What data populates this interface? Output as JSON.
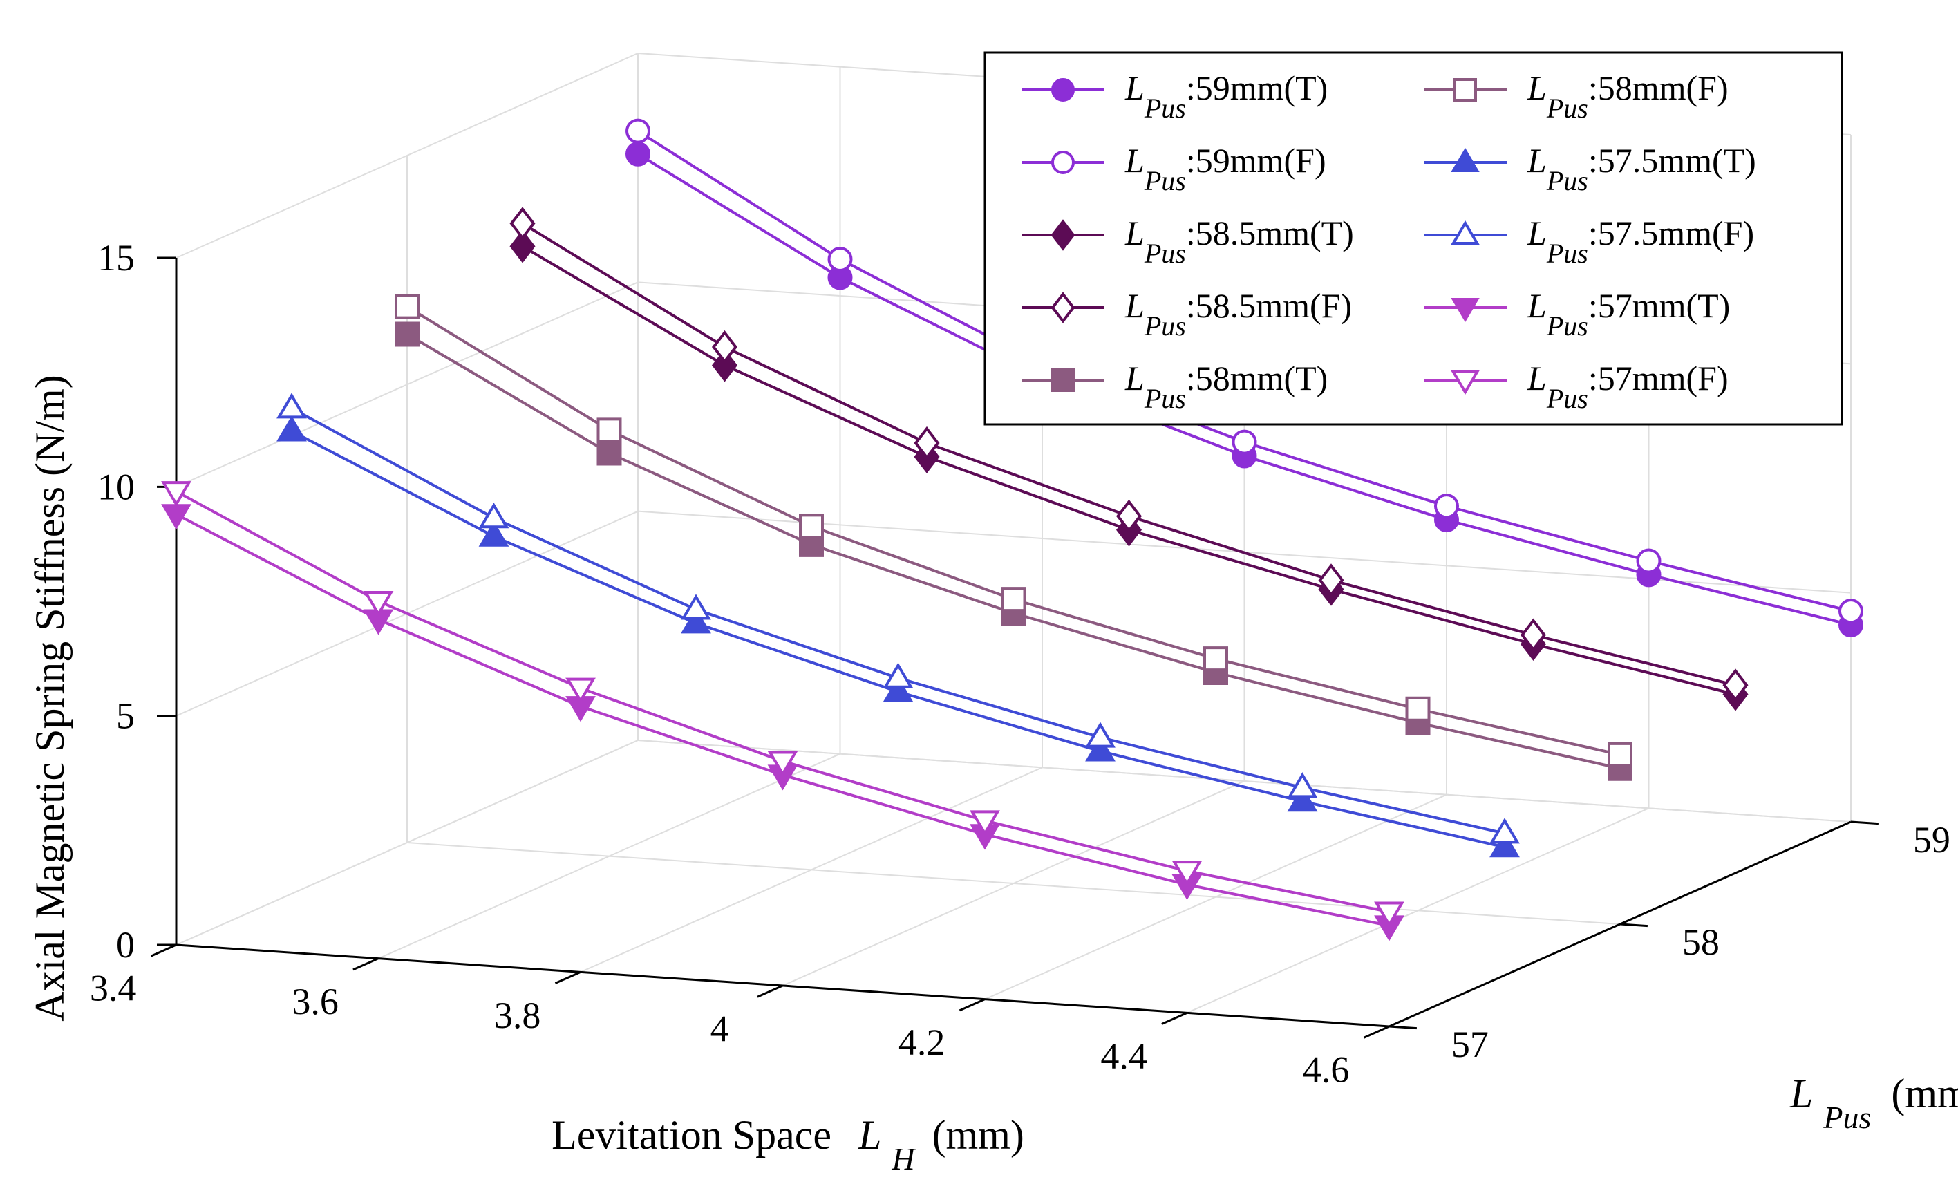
{
  "chart_data": {
    "type": "line3d",
    "title": "",
    "xlabel": {
      "prefix": "Levitation Space",
      "symbol": "L",
      "sub": "H",
      "unit": "(mm)"
    },
    "ylabel": {
      "symbol": "L",
      "sub": "Pus",
      "unit": "(mm)"
    },
    "zlabel": "Axial Magnetic Spring Stiffness (N/m)",
    "xlim": [
      3.4,
      4.6
    ],
    "ylim": [
      57,
      59
    ],
    "zlim": [
      0,
      15
    ],
    "x_ticks": [
      "3.4",
      "3.6",
      "3.8",
      "4",
      "4.2",
      "4.4",
      "4.6"
    ],
    "y_ticks": [
      "57",
      "58",
      "59"
    ],
    "z_ticks": [
      "0",
      "5",
      "10",
      "15"
    ],
    "x": [
      3.4,
      3.6,
      3.8,
      4.0,
      4.2,
      4.4,
      4.6
    ],
    "legend_position": "top-right",
    "series": [
      {
        "name_symbol": "L",
        "name_sub": "Pus",
        "name_value": ":59mm(T)",
        "lpus": 59,
        "color": "#8C2ED6",
        "marker": "circle",
        "filled": true,
        "values": [
          12.8,
          10.4,
          8.5,
          7.1,
          6.0,
          5.1,
          4.3
        ]
      },
      {
        "name_symbol": "L",
        "name_sub": "Pus",
        "name_value": ":59mm(F)",
        "lpus": 59,
        "color": "#8C2ED6",
        "marker": "circle",
        "filled": false,
        "values": [
          13.3,
          10.8,
          8.8,
          7.4,
          6.3,
          5.4,
          4.6
        ]
      },
      {
        "name_symbol": "L",
        "name_sub": "Pus",
        "name_value": ":58.5mm(T)",
        "lpus": 58.5,
        "color": "#5C0B55",
        "marker": "diamond",
        "filled": true,
        "values": [
          11.9,
          9.6,
          7.9,
          6.6,
          5.6,
          4.7,
          3.9
        ]
      },
      {
        "name_symbol": "L",
        "name_sub": "Pus",
        "name_value": ":58.5mm(F)",
        "lpus": 58.5,
        "color": "#5C0B55",
        "marker": "diamond",
        "filled": false,
        "values": [
          12.4,
          10.0,
          8.2,
          6.9,
          5.8,
          4.9,
          4.1
        ]
      },
      {
        "name_symbol": "L",
        "name_sub": "Pus",
        "name_value": ":58mm(T)",
        "lpus": 58,
        "color": "#8C5A80",
        "marker": "square",
        "filled": true,
        "values": [
          11.1,
          8.8,
          7.1,
          5.9,
          4.9,
          4.1,
          3.4
        ]
      },
      {
        "name_symbol": "L",
        "name_sub": "Pus",
        "name_value": ":58mm(F)",
        "lpus": 58,
        "color": "#8C5A80",
        "marker": "square",
        "filled": false,
        "values": [
          11.7,
          9.3,
          7.5,
          6.2,
          5.2,
          4.4,
          3.7
        ]
      },
      {
        "name_symbol": "L",
        "name_sub": "Pus",
        "name_value": ":57.5mm(T)",
        "lpus": 57.5,
        "color": "#3F4BD6",
        "marker": "triangle-up",
        "filled": true,
        "values": [
          10.1,
          8.1,
          6.5,
          5.3,
          4.3,
          3.5,
          2.8
        ]
      },
      {
        "name_symbol": "L",
        "name_sub": "Pus",
        "name_value": ":57.5mm(F)",
        "lpus": 57.5,
        "color": "#3F4BD6",
        "marker": "triangle-up",
        "filled": false,
        "values": [
          10.6,
          8.5,
          6.8,
          5.6,
          4.6,
          3.8,
          3.1
        ]
      },
      {
        "name_symbol": "L",
        "name_sub": "Pus",
        "name_value": ":57mm(T)",
        "lpus": 57,
        "color": "#B23DC8",
        "marker": "triangle-down",
        "filled": true,
        "values": [
          9.4,
          7.4,
          5.8,
          4.6,
          3.6,
          2.8,
          2.2
        ]
      },
      {
        "name_symbol": "L",
        "name_sub": "Pus",
        "name_value": ":57mm(F)",
        "lpus": 57,
        "color": "#B23DC8",
        "marker": "triangle-down",
        "filled": false,
        "values": [
          9.9,
          7.8,
          6.2,
          4.9,
          3.9,
          3.1,
          2.5
        ]
      }
    ]
  }
}
